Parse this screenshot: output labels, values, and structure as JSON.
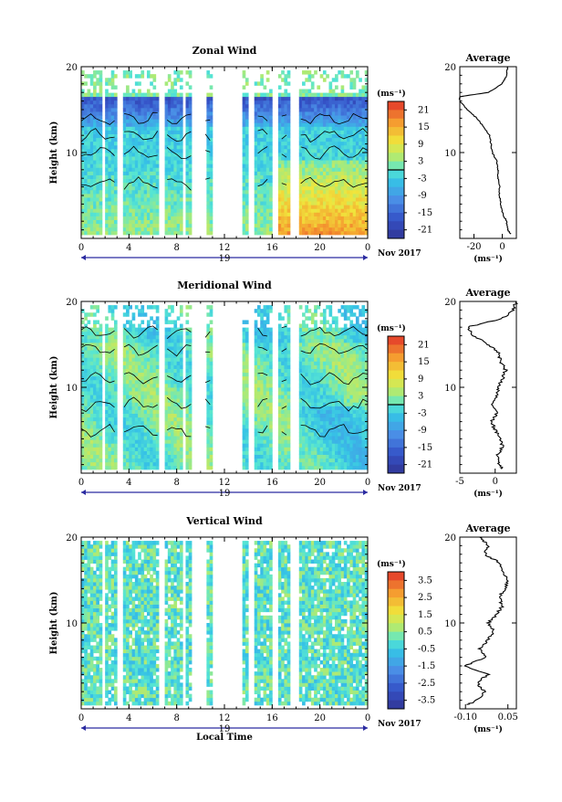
{
  "chart_data": [
    {
      "type": "heatmap",
      "title": "Zonal Wind",
      "ylabel": "Height (km)",
      "ylim": [
        0,
        20
      ],
      "y_ticks": [
        "10",
        "20"
      ],
      "x_ticks": [
        "0",
        "4",
        "8",
        "12",
        "16",
        "20",
        "0"
      ],
      "date_label": "19",
      "date_extra": "Nov 2017",
      "unit": "(ms⁻¹)",
      "colorbar_ticks": [
        "21",
        "15",
        "9",
        "3",
        "-3",
        "-9",
        "-15",
        "-21"
      ],
      "colorbar_range": [
        -24,
        24
      ],
      "average": {
        "title": "Average",
        "xlim": [
          -30,
          10
        ],
        "x_ticks": [
          "-20",
          "0"
        ],
        "xlabel": "(ms⁻¹)",
        "y_ticks": [
          "10",
          "20"
        ],
        "profile_height_km": [
          0.5,
          1,
          2,
          3,
          4,
          5,
          6,
          7,
          8,
          9,
          10,
          11,
          12,
          13,
          14,
          15,
          16,
          16.5,
          17,
          18,
          19,
          20
        ],
        "profile_value": [
          6,
          4,
          3,
          0,
          -1,
          -2,
          -2,
          -3,
          -3,
          -4,
          -7,
          -8,
          -9,
          -13,
          -18,
          -25,
          -30,
          -30,
          -10,
          0,
          3,
          4
        ]
      }
    },
    {
      "type": "heatmap",
      "title": "Meridional Wind",
      "ylabel": "Height (km)",
      "ylim": [
        0,
        20
      ],
      "y_ticks": [
        "10",
        "20"
      ],
      "x_ticks": [
        "0",
        "4",
        "8",
        "12",
        "16",
        "20",
        "0"
      ],
      "date_label": "19",
      "date_extra": "Nov 2017",
      "unit": "(ms⁻¹)",
      "colorbar_ticks": [
        "21",
        "15",
        "9",
        "3",
        "-3",
        "-9",
        "-15",
        "-21"
      ],
      "colorbar_range": [
        -24,
        24
      ],
      "average": {
        "title": "Average",
        "xlim": [
          -5,
          3
        ],
        "x_ticks": [
          "-5",
          "0"
        ],
        "xlabel": "(ms⁻¹)",
        "y_ticks": [
          "10",
          "20"
        ],
        "profile_height_km": [
          0.5,
          1,
          2,
          3,
          4,
          5,
          6,
          7,
          8,
          9,
          10,
          11,
          12,
          13,
          14,
          15,
          16,
          17,
          18,
          19,
          20
        ],
        "profile_value": [
          1,
          0.5,
          0.3,
          1,
          0.8,
          0,
          -0.5,
          0.2,
          -0.4,
          0.3,
          0.5,
          1,
          1.5,
          0.8,
          0.5,
          -1,
          -3,
          -4,
          1,
          2.5,
          3
        ]
      }
    },
    {
      "type": "heatmap",
      "title": "Vertical Wind",
      "xlabel": "Local Time",
      "ylabel": "Height (km)",
      "ylim": [
        0,
        20
      ],
      "y_ticks": [
        "10",
        "20"
      ],
      "x_ticks": [
        "0",
        "4",
        "8",
        "12",
        "16",
        "20",
        "0"
      ],
      "date_label": "19",
      "date_extra": "Nov 2017",
      "unit": "(ms⁻¹)",
      "colorbar_ticks": [
        "3.5",
        "2.5",
        "1.5",
        "0.5",
        "-0.5",
        "-1.5",
        "-2.5",
        "-3.5"
      ],
      "colorbar_range": [
        -4,
        4
      ],
      "average": {
        "title": "Average",
        "xlim": [
          -0.12,
          0.08
        ],
        "x_ticks": [
          "-0.10",
          "0.05"
        ],
        "xlabel": "(ms⁻¹)",
        "y_ticks": [
          "10",
          "20"
        ],
        "profile_height_km": [
          0.5,
          1,
          2,
          3,
          4,
          5,
          6,
          7,
          8,
          9,
          10,
          11,
          12,
          13,
          14,
          15,
          16,
          17,
          18,
          19,
          20
        ],
        "profile_value": [
          -0.09,
          -0.06,
          -0.03,
          -0.06,
          -0.02,
          -0.1,
          -0.03,
          -0.05,
          -0.02,
          0.0,
          -0.02,
          0.01,
          0.03,
          0.02,
          0.04,
          0.05,
          0.03,
          0.02,
          -0.03,
          -0.02,
          -0.05
        ]
      }
    }
  ]
}
